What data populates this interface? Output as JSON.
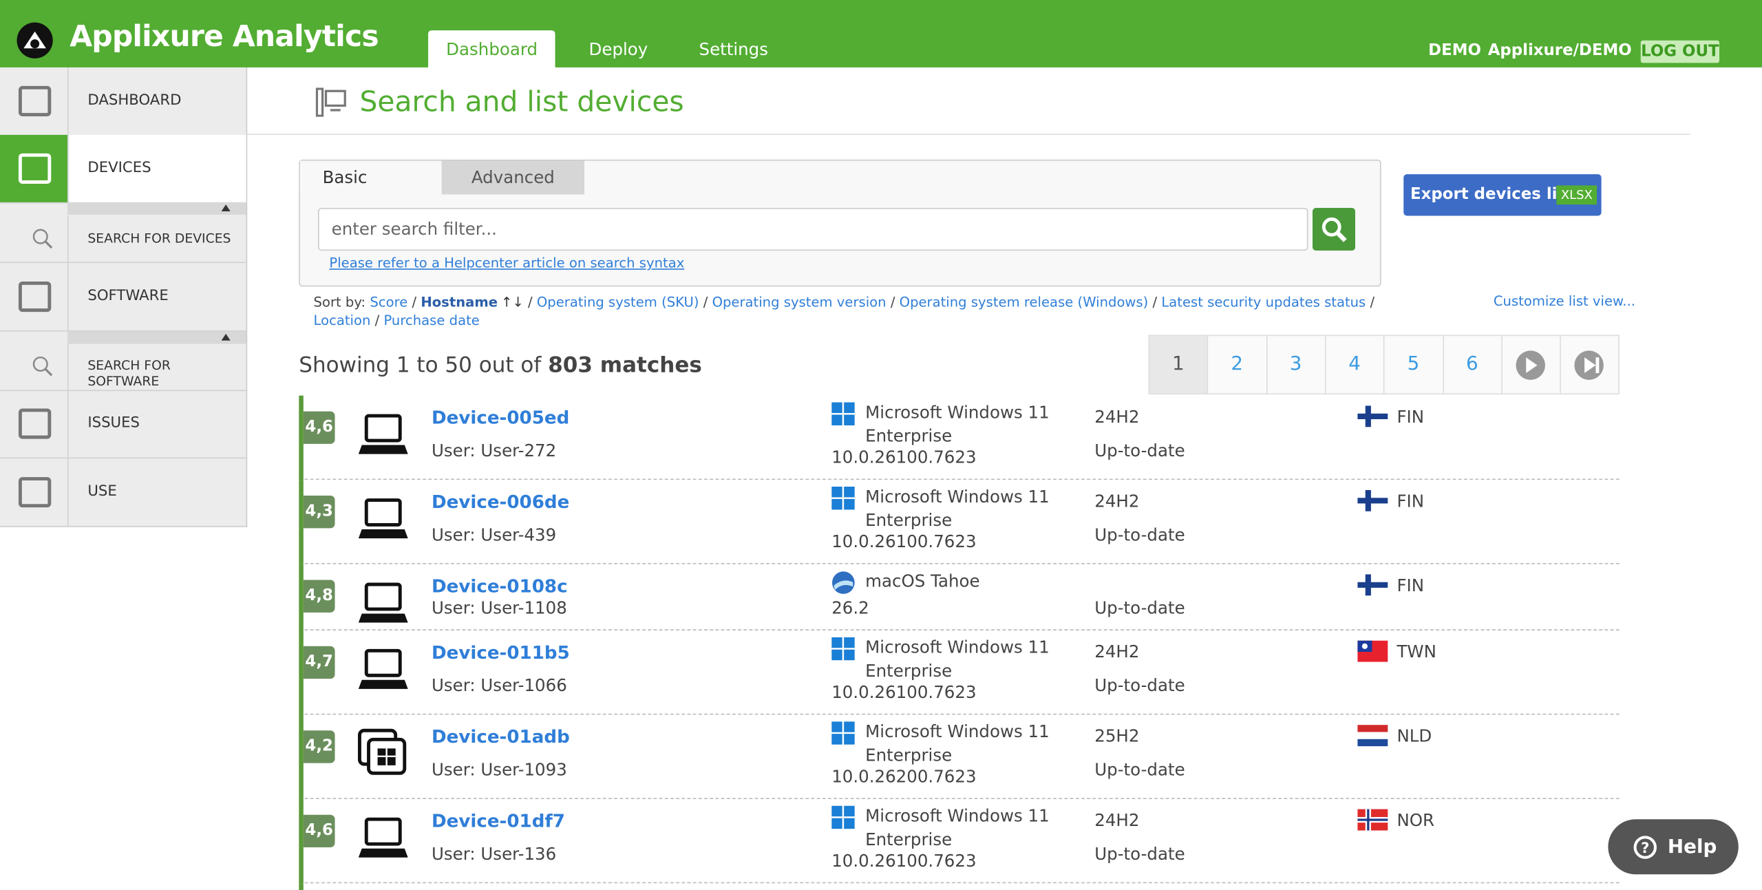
{
  "header": {
    "brand": "Applixure Analytics",
    "tabs": [
      "Dashboard",
      "Deploy",
      "Settings"
    ],
    "active_tab": 0,
    "user": "DEMO",
    "org": "Applixure/DEMO",
    "logout": "LOG OUT"
  },
  "sidebar": {
    "items": [
      "DASHBOARD",
      "DEVICES",
      "SEARCH FOR DEVICES",
      "SOFTWARE",
      "SEARCH FOR SOFTWARE",
      "ISSUES",
      "USE"
    ],
    "active": 1
  },
  "page": {
    "title": "Search and list devices"
  },
  "search": {
    "tabs": [
      "Basic",
      "Advanced"
    ],
    "placeholder": "enter search filter...",
    "help_link": "Please refer to a Helpcenter article on search syntax"
  },
  "export": {
    "label": "Export devices list",
    "badge": "XLSX"
  },
  "sort": {
    "label": "Sort by:",
    "options": [
      "Score",
      "Hostname",
      "Operating system (SKU)",
      "Operating system version",
      "Operating system release (Windows)",
      "Latest security updates status",
      "Location",
      "Purchase date"
    ],
    "active": 1,
    "customize": "Customize list view..."
  },
  "summary": {
    "prefix": "Showing 1 to 50 out of",
    "count": "803 matches"
  },
  "pagination": {
    "pages": [
      "1",
      "2",
      "3",
      "4",
      "5",
      "6"
    ],
    "current": 0
  },
  "rows": [
    {
      "score": "4,6",
      "name": "Device-005ed",
      "user": "User: User-272",
      "icon": "laptop",
      "os_icon": "windows",
      "os": "Microsoft Windows 11 Enterprise",
      "version": "10.0.26100.7623",
      "release": "24H2",
      "updates": "Up-to-date",
      "country": "FIN",
      "flag": {
        "type": "nordic",
        "colors": [
          "#ffffff",
          "#1a3f8c"
        ]
      }
    },
    {
      "score": "4,3",
      "name": "Device-006de",
      "user": "User: User-439",
      "icon": "laptop",
      "os_icon": "windows",
      "os": "Microsoft Windows 11 Enterprise",
      "version": "10.0.26100.7623",
      "release": "24H2",
      "updates": "Up-to-date",
      "country": "FIN",
      "flag": {
        "type": "nordic",
        "colors": [
          "#ffffff",
          "#1a3f8c"
        ]
      }
    },
    {
      "score": "4,8",
      "name": "Device-0108c",
      "user": "User: User-1108",
      "icon": "laptop",
      "os_icon": "macos",
      "os": "macOS Tahoe",
      "version": "26.2",
      "release": null,
      "updates": "Up-to-date",
      "country": "FIN",
      "flag": {
        "type": "nordic",
        "colors": [
          "#ffffff",
          "#1a3f8c"
        ]
      }
    },
    {
      "score": "4,7",
      "name": "Device-011b5",
      "user": "User: User-1066",
      "icon": "laptop",
      "os_icon": "windows",
      "os": "Microsoft Windows 11 Enterprise",
      "version": "10.0.26100.7623",
      "release": "24H2",
      "updates": "Up-to-date",
      "country": "TWN",
      "flag": {
        "type": "canton",
        "colors": [
          "#e8212e",
          "#1c3a9e"
        ]
      }
    },
    {
      "score": "4,2",
      "name": "Device-01adb",
      "user": "User: User-1093",
      "icon": "vm",
      "os_icon": "windows",
      "os": "Microsoft Windows 11 Enterprise",
      "version": "10.0.26200.7623",
      "release": "25H2",
      "updates": "Up-to-date",
      "country": "NLD",
      "flag": {
        "type": "stripes",
        "colors": [
          "#d22a2a",
          "#ffffff",
          "#1f4b9c"
        ]
      }
    },
    {
      "score": "4,6",
      "name": "Device-01df7",
      "user": "User: User-136",
      "icon": "laptop",
      "os_icon": "windows",
      "os": "Microsoft Windows 11 Enterprise",
      "version": "10.0.26100.7623",
      "release": "24H2",
      "updates": "Up-to-date",
      "country": "NOR",
      "flag": {
        "type": "nordic",
        "colors": [
          "#e02b2b",
          "#ffffff",
          "#1f3a8a"
        ]
      }
    }
  ],
  "help": "Help"
}
